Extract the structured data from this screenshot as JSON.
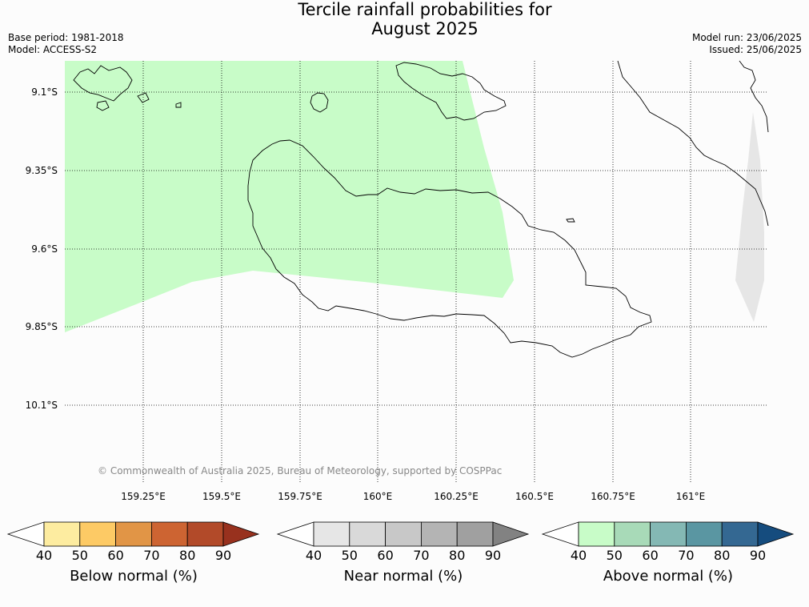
{
  "title": {
    "line1": "Tercile rainfall probabilities for",
    "line2": "August 2025"
  },
  "meta_left": {
    "base_period": "Base period: 1981-2018",
    "model": "Model: ACCESS-S2"
  },
  "meta_right": {
    "model_run": "Model run: 23/06/2025",
    "issued": "Issued: 25/06/2025"
  },
  "lat_labels": [
    "9.1°S",
    "9.35°S",
    "9.6°S",
    "9.85°S",
    "10.1°S"
  ],
  "lon_labels": [
    "159.25°E",
    "159.5°E",
    "159.75°E",
    "160°E",
    "160.25°E",
    "160.5°E",
    "160.75°E",
    "161°E"
  ],
  "copyright": "© Commonwealth of Australia 2025, Bureau of Meteorology, supported by COSPPac",
  "colorbars": [
    {
      "title": "Below normal (%)",
      "ticks": [
        "40",
        "50",
        "60",
        "70",
        "80",
        "90"
      ],
      "colors": [
        "#ffffff",
        "#fdeca0",
        "#fdca65",
        "#e19546",
        "#cd6432",
        "#b24a29",
        "#98311e"
      ]
    },
    {
      "title": "Near normal (%)",
      "ticks": [
        "40",
        "50",
        "60",
        "70",
        "80",
        "90"
      ],
      "colors": [
        "#ffffff",
        "#e6e6e6",
        "#d9d9d9",
        "#c8c8c8",
        "#b4b4b4",
        "#a0a0a0",
        "#828282"
      ]
    },
    {
      "title": "Above normal (%)",
      "ticks": [
        "40",
        "50",
        "60",
        "70",
        "80",
        "90"
      ],
      "colors": [
        "#ffffff",
        "#c8fcc8",
        "#a8dab8",
        "#84b8b4",
        "#5a96a2",
        "#346892",
        "#154c7e"
      ]
    }
  ],
  "fill_colors": {
    "above_normal_region": "#c8fcc8",
    "near_normal_region": "#e6e6e6"
  }
}
